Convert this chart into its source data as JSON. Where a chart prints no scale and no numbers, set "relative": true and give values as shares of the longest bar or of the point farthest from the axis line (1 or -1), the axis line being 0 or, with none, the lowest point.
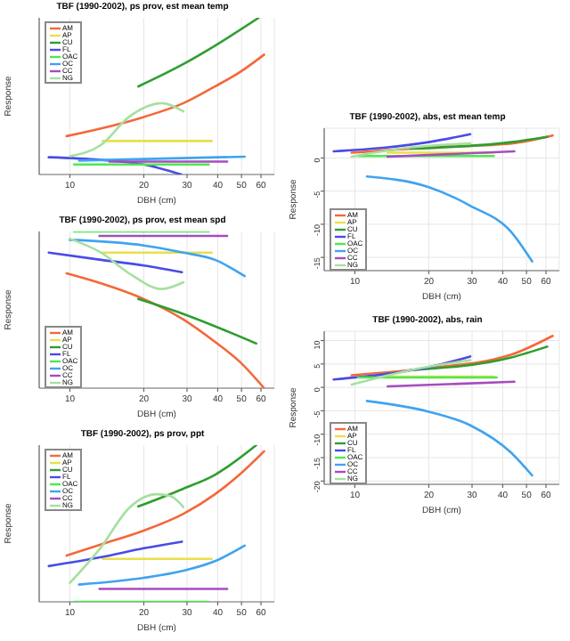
{
  "chart_data": [
    {
      "type": "line",
      "title": "TBF (1990-2002), ps prov, est mean temp",
      "xlabel": "DBH (cm)",
      "ylabel": "Response",
      "relative": true,
      "xlim": [
        7.5,
        68
      ],
      "xticks": [
        10,
        20,
        30,
        40,
        50,
        60
      ],
      "log": "x",
      "grid": "x",
      "legend": "top left",
      "marker": "none",
      "series": [
        {
          "name": "AM",
          "color": "#f4683a",
          "x": [
            9.7,
            20,
            29,
            39,
            49,
            61.8
          ],
          "values": [
            0.245,
            0.367,
            0.455,
            0.562,
            0.651,
            0.765
          ]
        },
        {
          "name": "AP",
          "color": "#e8e04a",
          "x": [
            13.6,
            37.8
          ],
          "values": [
            0.214,
            0.214
          ]
        },
        {
          "name": "CU",
          "color": "#2e9e2e",
          "x": [
            19,
            29,
            39,
            58.7
          ],
          "values": [
            0.562,
            0.705,
            0.822,
            1
          ]
        },
        {
          "name": "FL",
          "color": "#4a4ae8",
          "x": [
            8.2,
            13.4,
            20,
            28.4
          ],
          "values": [
            0.11,
            0.093,
            0.064,
            0
          ]
        },
        {
          "name": "OAC",
          "color": "#4ee84e",
          "x": [
            10.4,
            36.8
          ],
          "values": [
            0.064,
            0.064
          ]
        },
        {
          "name": "OC",
          "color": "#3fa3f0",
          "x": [
            10.9,
            51.5
          ],
          "values": [
            0.089,
            0.114
          ]
        },
        {
          "name": "CC",
          "color": "#a64cc0",
          "x": [
            14.5,
            43.7
          ],
          "values": [
            0.082,
            0.082
          ]
        },
        {
          "name": "NG",
          "color": "#a6e0a0",
          "x": [
            10,
            13.4,
            17.4,
            23.7,
            29
          ],
          "values": [
            0.117,
            0.189,
            0.367,
            0.455,
            0.402
          ]
        }
      ]
    },
    {
      "type": "line",
      "title": "TBF (1990-2002), ps prov, est mean spd",
      "xlabel": "DBH (cm)",
      "ylabel": "Response",
      "relative": true,
      "xlim": [
        7.5,
        68
      ],
      "xticks": [
        10,
        20,
        30,
        40,
        50,
        60
      ],
      "log": "x",
      "grid": "x",
      "legend": "bottom left",
      "marker": "none",
      "series": [
        {
          "name": "AM",
          "color": "#f4683a",
          "x": [
            9.7,
            13.4,
            20,
            29,
            39,
            49,
            61.8
          ],
          "values": [
            0.733,
            0.669,
            0.569,
            0.438,
            0.295,
            0.171,
            0
          ]
        },
        {
          "name": "AP",
          "color": "#e8e04a",
          "x": [
            13.6,
            37.8
          ],
          "values": [
            0.865,
            0.865
          ]
        },
        {
          "name": "CU",
          "color": "#2e9e2e",
          "x": [
            19,
            29,
            57.4
          ],
          "values": [
            0.569,
            0.473,
            0.285
          ]
        },
        {
          "name": "FL",
          "color": "#4a4ae8",
          "x": [
            8.2,
            13.4,
            20,
            28.6
          ],
          "values": [
            0.865,
            0.819,
            0.783,
            0.74
          ]
        },
        {
          "name": "OAC",
          "color": "#4ee84e",
          "x": [
            10.4,
            36.8
          ],
          "values": [
            1,
            1
          ]
        },
        {
          "name": "OC",
          "color": "#3fa3f0",
          "x": [
            10,
            20,
            29,
            39,
            51.5
          ],
          "values": [
            0.947,
            0.911,
            0.865,
            0.819,
            0.715
          ]
        },
        {
          "name": "CC",
          "color": "#a64cc0",
          "x": [
            13.2,
            43.7
          ],
          "values": [
            0.972,
            0.972
          ]
        },
        {
          "name": "NG",
          "color": "#a6e0a0",
          "x": [
            10,
            13.4,
            17.4,
            23.7,
            29
          ],
          "values": [
            0.954,
            0.865,
            0.733,
            0.633,
            0.676
          ]
        }
      ]
    },
    {
      "type": "line",
      "title": "TBF (1990-2002), ps prov, ppt",
      "xlabel": "DBH (cm)",
      "ylabel": "Response",
      "relative": true,
      "xlim": [
        7.5,
        68
      ],
      "xticks": [
        10,
        20,
        30,
        40,
        50,
        60
      ],
      "log": "x",
      "grid": "x",
      "legend": "top left",
      "marker": "none",
      "series": [
        {
          "name": "AM",
          "color": "#f4683a",
          "x": [
            9.7,
            13.4,
            20,
            29,
            39,
            49,
            61.8
          ],
          "values": [
            0.295,
            0.367,
            0.455,
            0.562,
            0.687,
            0.811,
            0.961
          ]
        },
        {
          "name": "AP",
          "color": "#e8e04a",
          "x": [
            13.6,
            37.8
          ],
          "values": [
            0.274,
            0.274
          ]
        },
        {
          "name": "CU",
          "color": "#2e9e2e",
          "x": [
            19,
            29,
            39,
            57.4
          ],
          "values": [
            0.609,
            0.722,
            0.811,
            1
          ]
        },
        {
          "name": "FL",
          "color": "#4a4ae8",
          "x": [
            8.2,
            13.4,
            20,
            28.6
          ],
          "values": [
            0.228,
            0.285,
            0.342,
            0.384
          ]
        },
        {
          "name": "OAC",
          "color": "#4ee84e",
          "x": [
            10.4,
            36.8
          ],
          "values": [
            0,
            0
          ]
        },
        {
          "name": "OC",
          "color": "#3fa3f0",
          "x": [
            10.9,
            20,
            29,
            39,
            51.5
          ],
          "values": [
            0.11,
            0.153,
            0.199,
            0.26,
            0.359
          ]
        },
        {
          "name": "CC",
          "color": "#a64cc0",
          "x": [
            13.2,
            43.7
          ],
          "values": [
            0.082,
            0.082
          ]
        },
        {
          "name": "NG",
          "color": "#a6e0a0",
          "x": [
            10,
            13.4,
            17.4,
            22.5,
            25.6,
            29
          ],
          "values": [
            0.121,
            0.349,
            0.598,
            0.687,
            0.676,
            0.605
          ]
        }
      ]
    },
    {
      "type": "line",
      "title": "TBF (1990-2002), abs, est mean temp",
      "xlabel": "DBH (cm)",
      "ylabel": "Response",
      "xlim": [
        7.5,
        68
      ],
      "xticks": [
        10,
        20,
        30,
        40,
        50,
        60
      ],
      "log": "x",
      "ylim": [
        -17,
        4.5
      ],
      "yticks": [
        -15,
        -10,
        -5,
        0
      ],
      "grid": true,
      "legend": "bottom left",
      "marker": "none",
      "series": [
        {
          "name": "AM",
          "color": "#f4683a",
          "x": [
            9.7,
            20,
            43.4,
            63.9
          ],
          "values": [
            0.8,
            1.6,
            2.2,
            3.4
          ]
        },
        {
          "name": "AP",
          "color": "#e8e04a",
          "x": [
            13.6,
            36.8
          ],
          "values": [
            0.8,
            0.8
          ]
        },
        {
          "name": "CU",
          "color": "#2e9e2e",
          "x": [
            16.9,
            43.4,
            60.7
          ],
          "values": [
            1.4,
            2.4,
            3.2
          ]
        },
        {
          "name": "FL",
          "color": "#4a4ae8",
          "x": [
            8.2,
            13.6,
            20,
            29.5
          ],
          "values": [
            1,
            1.6,
            2.4,
            3.6
          ]
        },
        {
          "name": "OAC",
          "color": "#4ee84e",
          "x": [
            10.3,
            36.8
          ],
          "values": [
            0.3,
            0.3
          ]
        },
        {
          "name": "OC",
          "color": "#3fa3f0",
          "x": [
            11.2,
            20,
            29.5,
            43.4,
            52.7
          ],
          "values": [
            -2.8,
            -4.4,
            -7.2,
            -11.2,
            -15.6
          ]
        },
        {
          "name": "CC",
          "color": "#a64cc0",
          "x": [
            13.6,
            44.6
          ],
          "values": [
            0.2,
            1
          ]
        },
        {
          "name": "NG",
          "color": "#a6e0a0",
          "x": [
            9.7,
            16.9,
            29.5
          ],
          "values": [
            0.2,
            1.6,
            2.2
          ]
        }
      ]
    },
    {
      "type": "line",
      "title": "TBF (1990-2002), abs, rain",
      "xlabel": "DBH (cm)",
      "ylabel": "Response",
      "xlim": [
        7.5,
        68
      ],
      "xticks": [
        10,
        20,
        30,
        40,
        50,
        60
      ],
      "log": "x",
      "ylim": [
        -20.7,
        12
      ],
      "yticks": [
        -20,
        -15,
        -10,
        -5,
        0,
        5,
        10
      ],
      "grid": true,
      "legend": "bottom left",
      "marker": "none",
      "series": [
        {
          "name": "AM",
          "color": "#f4683a",
          "x": [
            9.7,
            20,
            43.4,
            63.9
          ],
          "values": [
            2.6,
            4.1,
            7,
            11
          ]
        },
        {
          "name": "AP",
          "color": "#e8e04a",
          "x": [
            13.6,
            36.8
          ],
          "values": [
            2.3,
            2.3
          ]
        },
        {
          "name": "CU",
          "color": "#2e9e2e",
          "x": [
            16.9,
            43.4,
            60.7
          ],
          "values": [
            3.7,
            6.4,
            8.7
          ]
        },
        {
          "name": "FL",
          "color": "#4a4ae8",
          "x": [
            8.2,
            13.6,
            20,
            29.5
          ],
          "values": [
            1.7,
            2.9,
            4.3,
            6.6
          ]
        },
        {
          "name": "OAC",
          "color": "#4ee84e",
          "x": [
            10.3,
            37.8
          ],
          "values": [
            2.1,
            2.1
          ]
        },
        {
          "name": "OC",
          "color": "#3fa3f0",
          "x": [
            11.2,
            20,
            29.5,
            43.4,
            52.7
          ],
          "values": [
            -2.9,
            -5.2,
            -8.1,
            -14,
            -18.8
          ]
        },
        {
          "name": "CC",
          "color": "#a64cc0",
          "x": [
            13.6,
            44.6
          ],
          "values": [
            0.2,
            1.2
          ]
        },
        {
          "name": "NG",
          "color": "#a6e0a0",
          "x": [
            9.7,
            16.9,
            29.5
          ],
          "values": [
            0.6,
            3.7,
            5.8
          ]
        }
      ]
    }
  ]
}
